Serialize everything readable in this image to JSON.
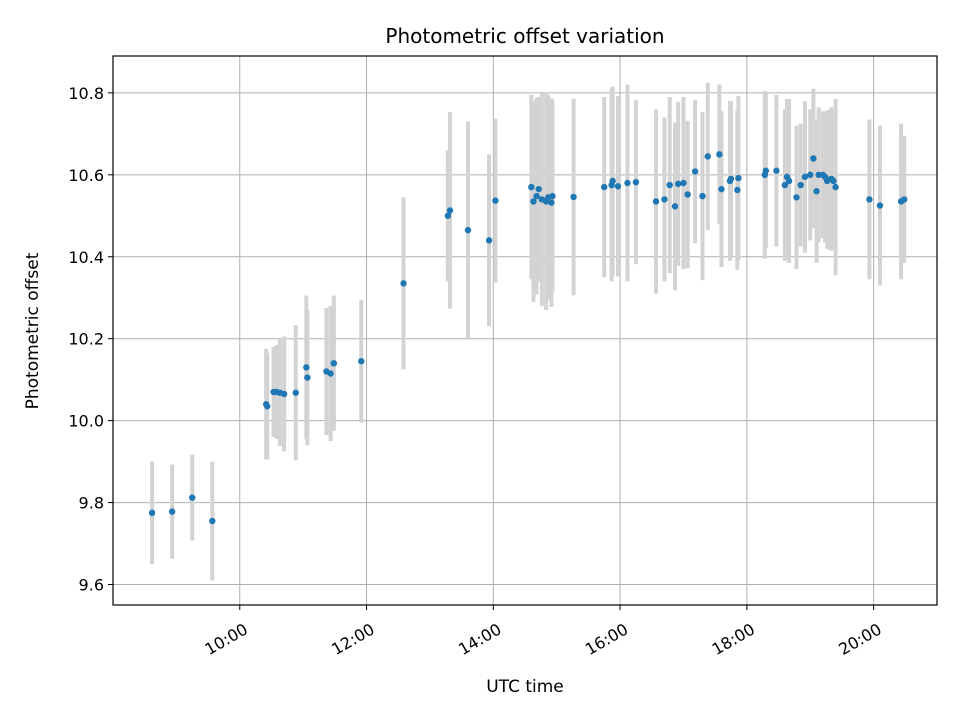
{
  "chart_data": {
    "type": "scatter",
    "title": "Photometric offset variation",
    "xlabel": "UTC time",
    "ylabel": "Photometric offset",
    "x_ticks": [
      "10:00",
      "12:00",
      "14:00",
      "16:00",
      "18:00",
      "20:00"
    ],
    "y_ticks": [
      "9.6",
      "9.8",
      "10.0",
      "10.2",
      "10.4",
      "10.6",
      "10.8"
    ],
    "xlim": [
      "08:00",
      "21:00"
    ],
    "ylim": [
      9.55,
      10.89
    ],
    "grid": true,
    "colors": {
      "point": "#1f77b4",
      "errorbar": "#d3d3d3",
      "grid": "#b0b0b0"
    },
    "series": [
      {
        "x": [
          "08:37",
          "08:56",
          "09:15",
          "09:34",
          "10:25",
          "10:26",
          "10:32",
          "10:35",
          "10:38",
          "10:42",
          "10:53",
          "11:03",
          "11:04",
          "11:22",
          "11:26",
          "11:29",
          "11:29",
          "11:55",
          "12:35",
          "13:17",
          "13:19",
          "13:36",
          "13:56",
          "14:02",
          "14:36",
          "14:38",
          "14:41",
          "14:43",
          "14:46",
          "14:50",
          "14:52",
          "14:55",
          "14:56",
          "15:16",
          "15:45",
          "15:52",
          "15:53",
          "15:58",
          "16:07",
          "16:15",
          "16:34",
          "16:42",
          "16:47",
          "16:52",
          "16:55",
          "17:00",
          "17:04",
          "17:11",
          "17:18",
          "17:23",
          "17:34",
          "17:36",
          "17:44",
          "17:45",
          "17:51",
          "17:52",
          "18:17",
          "18:18",
          "18:28",
          "18:36",
          "18:38",
          "18:40",
          "18:47",
          "18:51",
          "18:55",
          "19:00",
          "19:03",
          "19:06",
          "19:08",
          "19:12",
          "19:14",
          "19:16",
          "19:17",
          "19:20",
          "19:22",
          "19:24",
          "19:56",
          "20:06",
          "20:26",
          "20:29"
        ],
        "y": [
          9.775,
          9.778,
          9.812,
          9.755,
          10.04,
          10.035,
          10.07,
          10.07,
          10.068,
          10.065,
          10.068,
          10.13,
          10.105,
          10.12,
          10.115,
          10.14,
          10.14,
          10.145,
          10.335,
          10.5,
          10.513,
          10.465,
          10.44,
          10.537,
          10.57,
          10.535,
          10.548,
          10.565,
          10.54,
          10.535,
          10.545,
          10.532,
          10.548,
          10.546,
          10.57,
          10.575,
          10.585,
          10.572,
          10.58,
          10.582,
          10.535,
          10.54,
          10.575,
          10.523,
          10.578,
          10.58,
          10.552,
          10.608,
          10.548,
          10.645,
          10.65,
          10.565,
          10.585,
          10.59,
          10.563,
          10.592,
          10.6,
          10.61,
          10.61,
          10.575,
          10.595,
          10.585,
          10.545,
          10.575,
          10.595,
          10.6,
          10.64,
          10.56,
          10.6,
          10.6,
          10.595,
          10.585,
          10.588,
          10.59,
          10.585,
          10.57,
          10.54,
          10.525,
          10.535,
          10.54
        ],
        "yerr": [
          0.125,
          0.115,
          0.105,
          0.145,
          0.135,
          0.13,
          0.11,
          0.115,
          0.13,
          0.14,
          0.165,
          0.175,
          0.165,
          0.155,
          0.165,
          0.165,
          0.15,
          0.15,
          0.21,
          0.16,
          0.24,
          0.265,
          0.21,
          0.2,
          0.225,
          0.245,
          0.24,
          0.225,
          0.26,
          0.265,
          0.25,
          0.255,
          0.235,
          0.24,
          0.22,
          0.235,
          0.23,
          0.22,
          0.24,
          0.2,
          0.225,
          0.2,
          0.215,
          0.205,
          0.2,
          0.21,
          0.18,
          0.175,
          0.205,
          0.18,
          0.17,
          0.19,
          0.195,
          0.19,
          0.195,
          0.2,
          0.205,
          0.19,
          0.185,
          0.185,
          0.19,
          0.2,
          0.175,
          0.15,
          0.185,
          0.16,
          0.17,
          0.175,
          0.165,
          0.155,
          0.16,
          0.165,
          0.17,
          0.175,
          0.155,
          0.215,
          0.195,
          0.195,
          0.19,
          0.155
        ]
      }
    ]
  }
}
